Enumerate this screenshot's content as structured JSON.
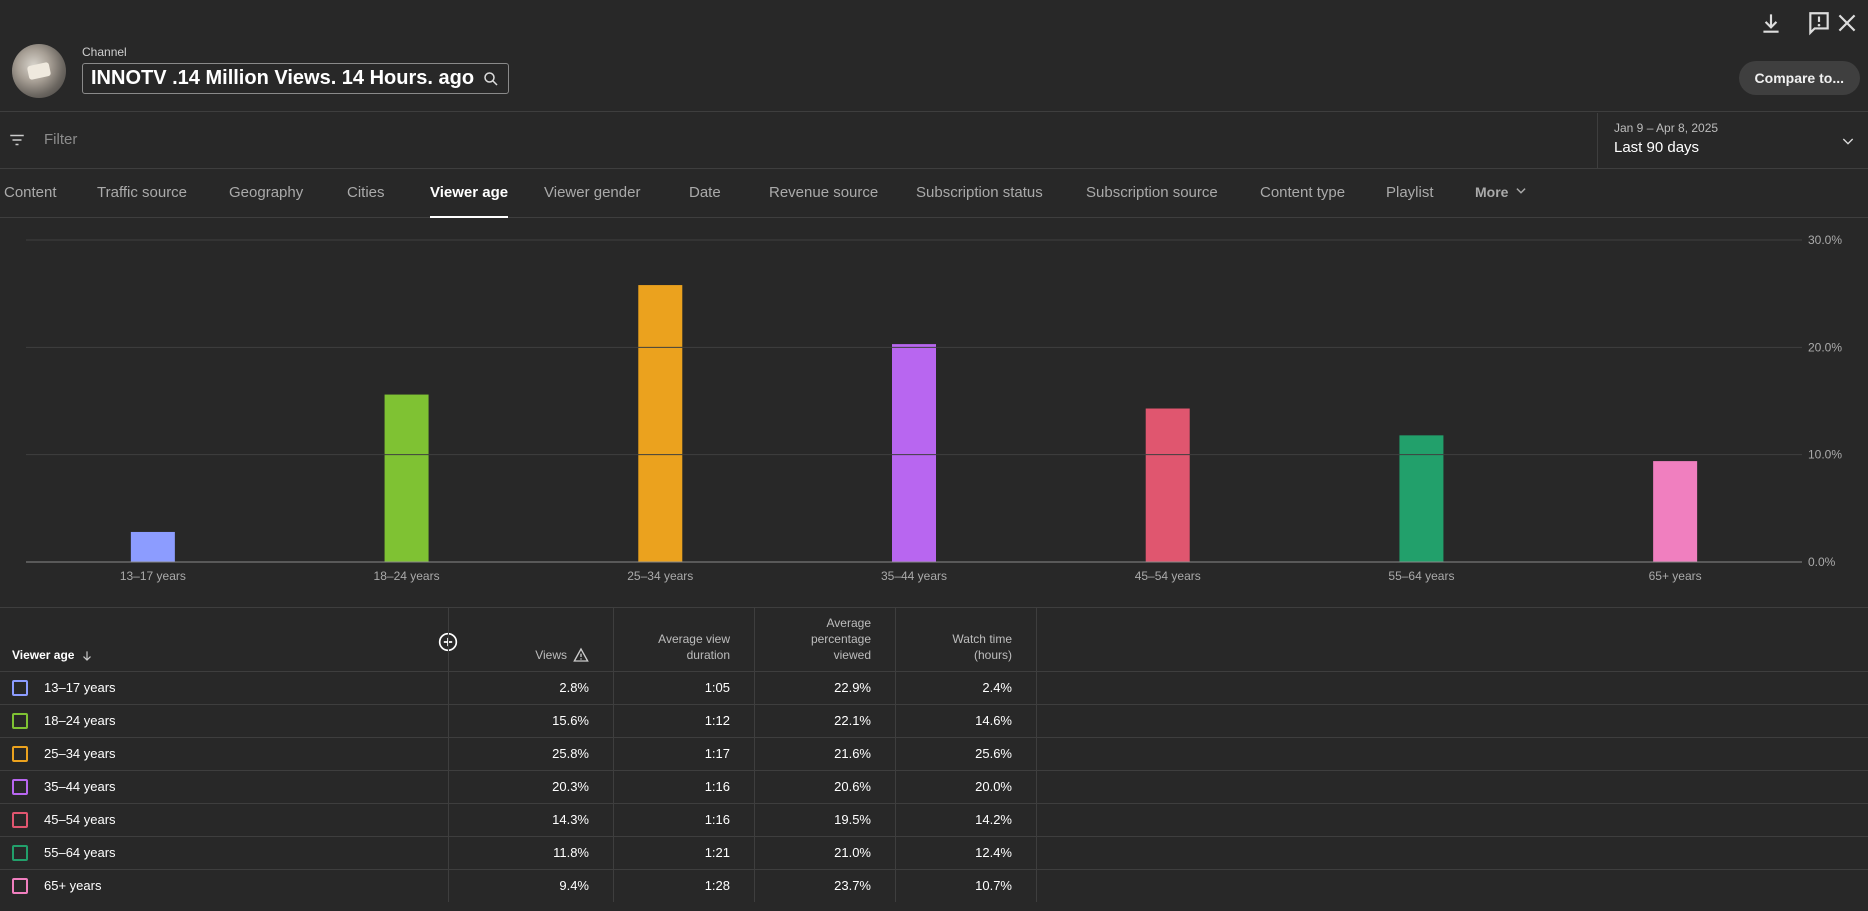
{
  "header": {
    "channel_label": "Channel",
    "channel_name": "INNOTV .14 Million Views. 14 Hours. ago",
    "compare_label": "Compare to..."
  },
  "filter": {
    "placeholder": "Filter",
    "date_range": "Jan 9 – Apr 8, 2025",
    "date_label": "Last 90 days"
  },
  "tabs": [
    {
      "label": "Content"
    },
    {
      "label": "Traffic source"
    },
    {
      "label": "Geography"
    },
    {
      "label": "Cities"
    },
    {
      "label": "Viewer age",
      "active": true
    },
    {
      "label": "Viewer gender"
    },
    {
      "label": "Date"
    },
    {
      "label": "Revenue source"
    },
    {
      "label": "Subscription status"
    },
    {
      "label": "Subscription source"
    },
    {
      "label": "Content type"
    },
    {
      "label": "Playlist"
    },
    {
      "label": "More"
    }
  ],
  "chart_data": {
    "type": "bar",
    "categories": [
      "13–17 years",
      "18–24 years",
      "25–34 years",
      "35–44 years",
      "45–54 years",
      "55–64 years",
      "65+ years"
    ],
    "values": [
      2.8,
      15.6,
      25.8,
      20.3,
      14.3,
      11.8,
      9.4
    ],
    "colors": [
      "#8c9cff",
      "#7fc233",
      "#eba21e",
      "#b866f0",
      "#e0566f",
      "#22a06b",
      "#f07fbf"
    ],
    "y_ticks": [
      "0.0%",
      "10.0%",
      "20.0%",
      "30.0%"
    ],
    "ylim": [
      0,
      30
    ],
    "grid": true,
    "y_axis_side": "right",
    "legend": "none"
  },
  "table": {
    "headers": {
      "dimension": "Viewer age",
      "views": "Views",
      "avg_duration_1": "Average view",
      "avg_duration_2": "duration",
      "avg_pct_1": "Average",
      "avg_pct_2": "percentage",
      "avg_pct_3": "viewed",
      "watch_1": "Watch time",
      "watch_2": "(hours)"
    },
    "rows": [
      {
        "label": "13–17 years",
        "views": "2.8%",
        "duration": "1:05",
        "pct": "22.9%",
        "watch": "2.4%"
      },
      {
        "label": "18–24 years",
        "views": "15.6%",
        "duration": "1:12",
        "pct": "22.1%",
        "watch": "14.6%"
      },
      {
        "label": "25–34 years",
        "views": "25.8%",
        "duration": "1:17",
        "pct": "21.6%",
        "watch": "25.6%"
      },
      {
        "label": "35–44 years",
        "views": "20.3%",
        "duration": "1:16",
        "pct": "20.6%",
        "watch": "20.0%"
      },
      {
        "label": "45–54 years",
        "views": "14.3%",
        "duration": "1:16",
        "pct": "19.5%",
        "watch": "14.2%"
      },
      {
        "label": "55–64 years",
        "views": "11.8%",
        "duration": "1:21",
        "pct": "21.0%",
        "watch": "12.4%"
      },
      {
        "label": "65+ years",
        "views": "9.4%",
        "duration": "1:28",
        "pct": "23.7%",
        "watch": "10.7%"
      }
    ]
  }
}
